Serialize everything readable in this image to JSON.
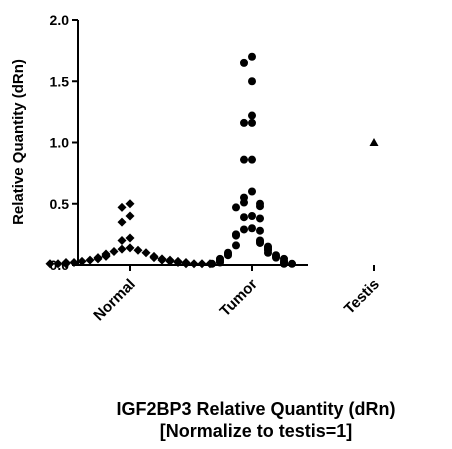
{
  "chart_data": {
    "type": "scatter",
    "title": "IGF2BP3 Relative Quantity (dRn)",
    "subtitle": "[Normalize to testis=1]",
    "ylabel": "Relative Quantity (dRn)",
    "xlabel": "",
    "ylim": [
      0,
      2.0
    ],
    "yticks": [
      "0.0",
      "0.5",
      "1.0",
      "1.5",
      "2.0"
    ],
    "categories": [
      "Normal",
      "Tumor",
      "Testis"
    ],
    "grid": false,
    "legend": "none",
    "series": [
      {
        "category": "Normal",
        "marker": "diamond",
        "values": [
          0.5,
          0.47,
          0.4,
          0.35,
          0.22,
          0.2,
          0.14,
          0.13,
          0.12,
          0.11,
          0.1,
          0.09,
          0.08,
          0.07,
          0.07,
          0.06,
          0.06,
          0.05,
          0.05,
          0.04,
          0.04,
          0.04,
          0.03,
          0.03,
          0.03,
          0.02,
          0.02,
          0.02,
          0.02,
          0.01,
          0.01,
          0.01,
          0.01,
          0.01,
          0.01,
          0.01
        ]
      },
      {
        "category": "Tumor",
        "marker": "circle",
        "values": [
          1.7,
          1.65,
          1.5,
          1.22,
          1.16,
          1.16,
          0.86,
          0.86,
          0.6,
          0.55,
          0.51,
          0.5,
          0.48,
          0.47,
          0.4,
          0.39,
          0.38,
          0.3,
          0.29,
          0.28,
          0.25,
          0.24,
          0.2,
          0.19,
          0.18,
          0.16,
          0.15,
          0.14,
          0.13,
          0.12,
          0.1,
          0.1,
          0.09,
          0.08,
          0.08,
          0.07,
          0.06,
          0.05,
          0.05,
          0.04,
          0.03,
          0.03,
          0.02,
          0.02,
          0.01,
          0.01,
          0.01
        ]
      },
      {
        "category": "Testis",
        "marker": "triangle",
        "values": [
          1.0
        ]
      }
    ],
    "colors": {
      "marker": "#000000",
      "axis": "#000000"
    }
  }
}
